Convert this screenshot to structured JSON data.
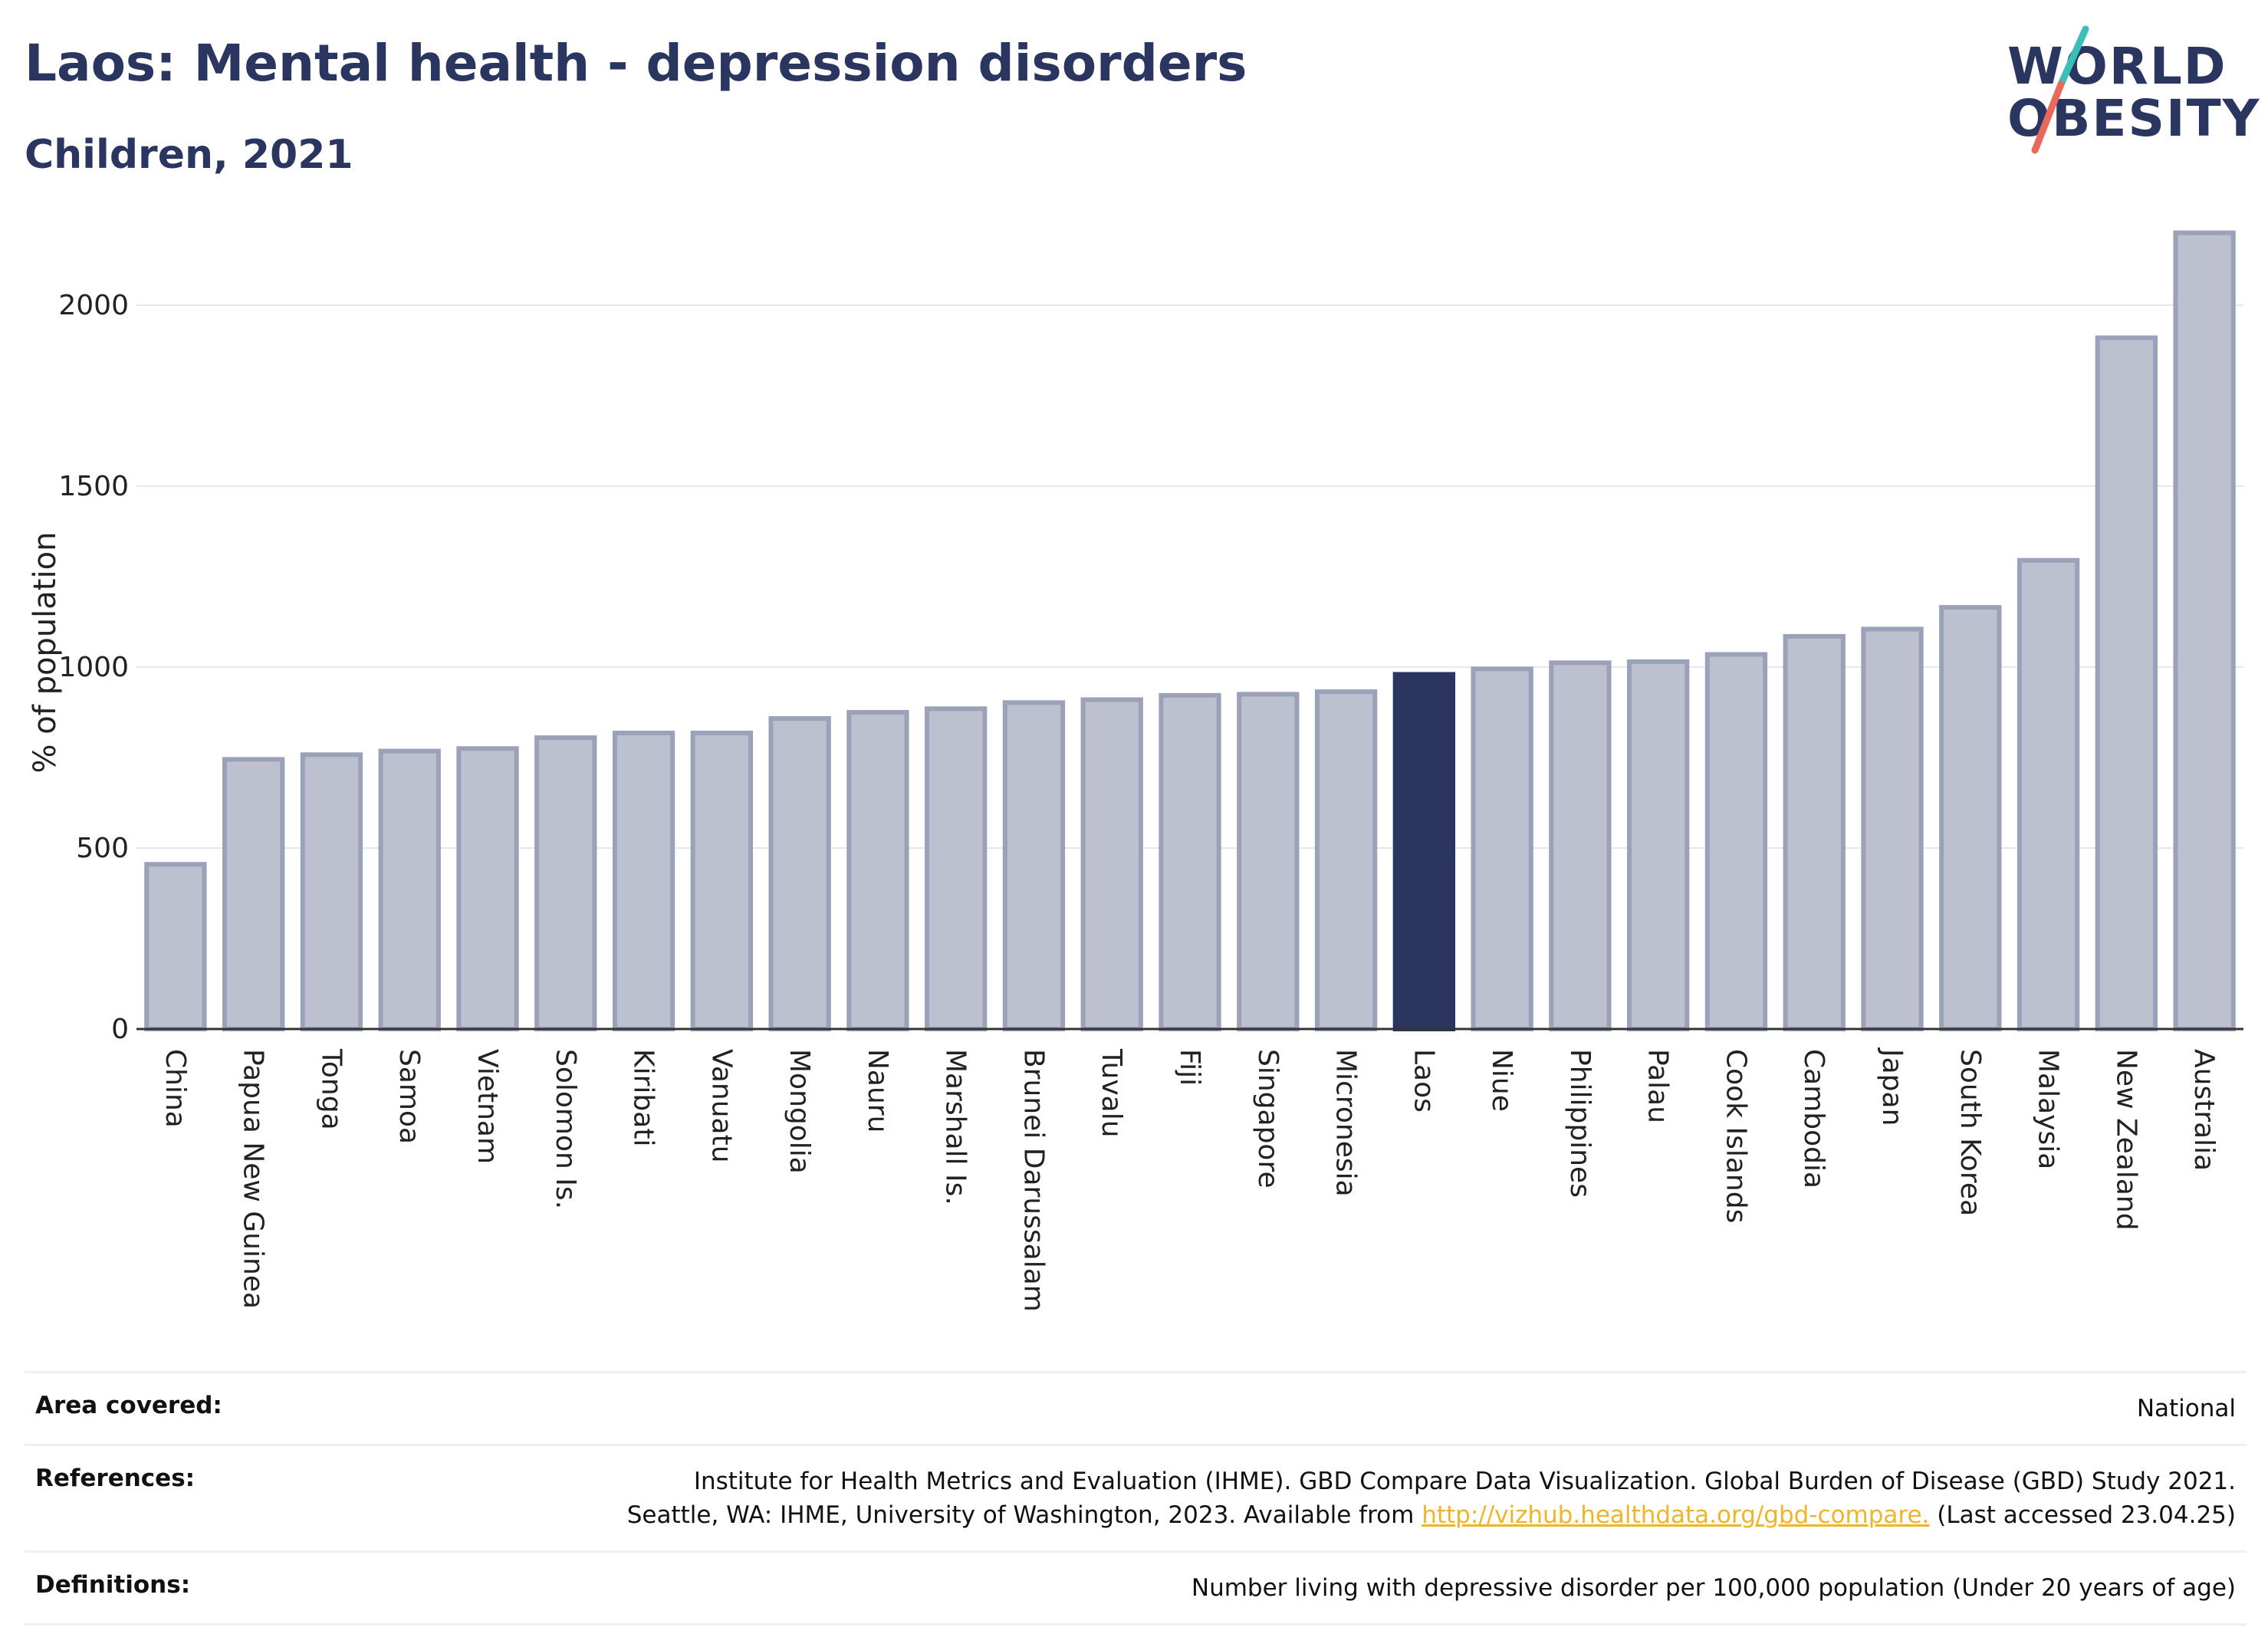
{
  "header": {
    "title": "Laos: Mental health - depression disorders",
    "subtitle": "Children, 2021"
  },
  "logo": {
    "line1": "WORLD",
    "line2": "OBESITY",
    "colors": {
      "text": "#2a3560",
      "slash_top": "#3bbfb8",
      "slash_bottom": "#e8685a"
    }
  },
  "colors": {
    "bar_fill": "#bcc0cf",
    "bar_stroke": "#9aa1b9",
    "highlight": "#2a3560",
    "grid": "#e6e8ee",
    "axis": "#333333"
  },
  "chart_data": {
    "type": "bar",
    "ylabel": "% of population",
    "ylim": [
      0,
      2250
    ],
    "yticks": [
      0,
      500,
      1000,
      1500,
      2000
    ],
    "highlight": "Laos",
    "grid": true,
    "categories": [
      "China",
      "Papua New Guinea",
      "Tonga",
      "Samoa",
      "Vietnam",
      "Solomon Is.",
      "Kiribati",
      "Vanuatu",
      "Mongolia",
      "Nauru",
      "Marshall Is.",
      "Brunei Darussalam",
      "Tuvalu",
      "Fiji",
      "Singapore",
      "Micronesia",
      "Laos",
      "Niue",
      "Philippines",
      "Palau",
      "Cook Islands",
      "Cambodia",
      "Japan",
      "South Korea",
      "Malaysia",
      "New Zealand",
      "Australia"
    ],
    "values": [
      455,
      745,
      758,
      768,
      775,
      805,
      818,
      818,
      858,
      875,
      885,
      902,
      910,
      922,
      925,
      932,
      980,
      995,
      1012,
      1015,
      1035,
      1085,
      1105,
      1165,
      1295,
      1910,
      2200
    ]
  },
  "footer": {
    "area_label": "Area covered:",
    "area_value": "National",
    "references_label": "References:",
    "references_line1": "Institute for Health Metrics and Evaluation (IHME). GBD Compare Data Visualization. Global Burden of Disease (GBD) Study 2021.",
    "references_line2_pre": "Seattle, WA: IHME, University of Washington, 2023. Available from",
    "references_link": "http://vizhub.healthdata.org/gbd-compare.",
    "references_line2_post": "(Last accessed 23.04.25)",
    "definitions_label": "Definitions:",
    "definitions_value": "Number living with depressive disorder per 100,000 population (Under 20 years of age)"
  }
}
